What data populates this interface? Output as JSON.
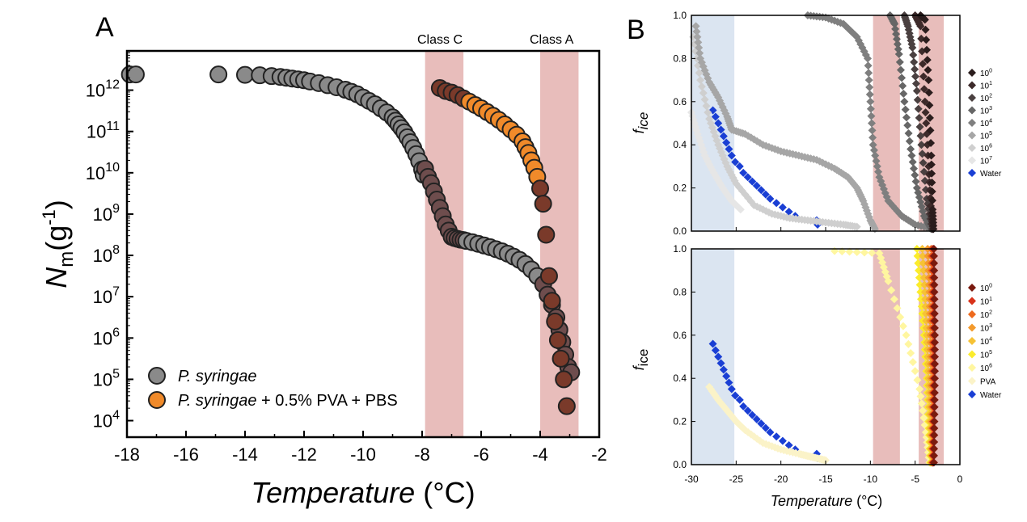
{
  "panel_a": {
    "letter": "A",
    "band_labels": [
      "Class C",
      "Class A"
    ],
    "y_title_main": "N",
    "y_title_sub": "m",
    "y_title_rest": "(g",
    "y_title_sup": "-1",
    "y_title_close": ")",
    "x_title_italic": "Temperature",
    "x_title_unit": " (°C)",
    "legend": [
      {
        "italic": "P. syringae",
        "rest": ""
      },
      {
        "italic": "P. syringae",
        "rest": " + 0.5% PVA + PBS"
      }
    ]
  },
  "panel_b": {
    "letter": "B",
    "y_title_f": "f",
    "y_title_sub_top": "ice",
    "y_title_sub_bottom": "ice",
    "x_title_italic": "Temperature",
    "x_title_unit": " (°C)",
    "legend_top": [
      {
        "base": "10",
        "exp": "0"
      },
      {
        "base": "10",
        "exp": "1"
      },
      {
        "base": "10",
        "exp": "2"
      },
      {
        "base": "10",
        "exp": "3"
      },
      {
        "base": "10",
        "exp": "4"
      },
      {
        "base": "10",
        "exp": "5"
      },
      {
        "base": "10",
        "exp": "6"
      },
      {
        "base": "10",
        "exp": "7"
      },
      {
        "base": "Water",
        "exp": ""
      }
    ],
    "legend_bottom": [
      {
        "base": "10",
        "exp": "0"
      },
      {
        "base": "10",
        "exp": "1"
      },
      {
        "base": "10",
        "exp": "2"
      },
      {
        "base": "10",
        "exp": "3"
      },
      {
        "base": "10",
        "exp": "4"
      },
      {
        "base": "10",
        "exp": "5"
      },
      {
        "base": "10",
        "exp": "6"
      },
      {
        "base": "PVA",
        "exp": ""
      },
      {
        "base": "Water",
        "exp": ""
      }
    ]
  },
  "chart_data": [
    {
      "type": "scatter",
      "panel": "A",
      "title": "",
      "xlabel": "Temperature (°C)",
      "ylabel": "Nm(g-1)",
      "xlim": [
        -18,
        -2
      ],
      "ylim_log10": [
        3.6,
        12.95
      ],
      "x_ticks": [
        "-18",
        "-16",
        "-14",
        "-12",
        "-10",
        "-8",
        "-6",
        "-4",
        "-2"
      ],
      "y_ticks": [
        {
          "base": "10",
          "exp": "4"
        },
        {
          "base": "10",
          "exp": "5"
        },
        {
          "base": "10",
          "exp": "6"
        },
        {
          "base": "10",
          "exp": "7"
        },
        {
          "base": "10",
          "exp": "8"
        },
        {
          "base": "10",
          "exp": "9"
        },
        {
          "base": "10",
          "exp": "10"
        },
        {
          "base": "10",
          "exp": "11"
        },
        {
          "base": "10",
          "exp": "12"
        }
      ],
      "bands": [
        {
          "label": "Class C",
          "x": [
            -7.9,
            -6.6
          ],
          "color": "#e8bdbb"
        },
        {
          "label": "Class A",
          "x": [
            -4.0,
            -2.7
          ],
          "color": "#e8bdbb"
        }
      ],
      "series": [
        {
          "name": "P. syringae",
          "color": "#8a8a8a",
          "x": [
            -17.9,
            -17.7,
            -14.9,
            -14.0,
            -13.5,
            -13.1,
            -12.8,
            -12.6,
            -12.4,
            -12.2,
            -12.0,
            -11.8,
            -11.5,
            -11.2,
            -10.9,
            -10.6,
            -10.4,
            -10.2,
            -10.0,
            -9.8,
            -9.6,
            -9.4,
            -9.2,
            -9.0,
            -8.9,
            -8.8,
            -8.7,
            -8.6,
            -8.5,
            -8.4,
            -8.3,
            -8.2,
            -8.1,
            -8.0,
            -7.95,
            -7.9,
            -7.8,
            -7.7,
            -7.6,
            -7.5,
            -7.4,
            -7.3,
            -7.2,
            -7.1,
            -7.0,
            -6.9,
            -6.8,
            -6.7,
            -6.6,
            -6.5,
            -6.3,
            -6.1,
            -5.9,
            -5.7,
            -5.5,
            -5.3,
            -5.1,
            -4.9,
            -4.7,
            -4.5,
            -4.3,
            -4.1,
            -3.9,
            -3.75,
            -3.6,
            -3.45,
            -3.35,
            -3.25,
            -3.15,
            -3.05,
            -2.95
          ],
          "log10y": [
            12.38,
            12.38,
            12.38,
            12.37,
            12.36,
            12.34,
            12.32,
            12.3,
            12.28,
            12.26,
            12.24,
            12.21,
            12.17,
            12.12,
            12.07,
            12.01,
            11.96,
            11.9,
            11.82,
            11.74,
            11.66,
            11.56,
            11.46,
            11.34,
            11.26,
            11.17,
            11.08,
            10.98,
            10.86,
            10.74,
            10.6,
            10.45,
            10.28,
            10.08,
            9.95,
            10.1,
            9.9,
            9.75,
            9.55,
            9.35,
            9.15,
            8.95,
            8.75,
            8.6,
            8.45,
            8.42,
            8.4,
            8.38,
            8.37,
            8.35,
            8.32,
            8.28,
            8.24,
            8.2,
            8.15,
            8.1,
            8.04,
            7.97,
            7.89,
            7.79,
            7.66,
            7.5,
            7.3,
            7.05,
            6.8,
            6.5,
            6.2,
            5.9,
            5.6,
            5.3,
            5.17
          ]
        },
        {
          "name": "P. syringae + 0.5% PVA + PBS",
          "color": "#f08a2a",
          "x": [
            -7.4,
            -7.2,
            -7.0,
            -6.8,
            -6.6,
            -6.4,
            -6.2,
            -6.0,
            -5.8,
            -5.6,
            -5.4,
            -5.2,
            -5.0,
            -4.8,
            -4.6,
            -4.5,
            -4.4,
            -4.3,
            -4.2,
            -4.1,
            -4.0,
            -3.9,
            -3.8,
            -3.7,
            -3.6,
            -3.5,
            -3.4,
            -3.3,
            -3.2,
            -3.1
          ],
          "log10y": [
            12.05,
            11.98,
            11.94,
            11.88,
            11.8,
            11.72,
            11.64,
            11.56,
            11.47,
            11.38,
            11.28,
            11.17,
            11.05,
            10.92,
            10.76,
            10.62,
            10.48,
            10.3,
            10.12,
            9.9,
            9.62,
            9.25,
            8.5,
            7.5,
            6.9,
            6.4,
            5.95,
            5.5,
            5.0,
            4.35
          ]
        }
      ]
    },
    {
      "type": "scatter",
      "panel": "B-top",
      "title": "",
      "xlabel": "",
      "ylabel": "fice",
      "xlim": [
        -30,
        0
      ],
      "ylim": [
        0,
        1.0
      ],
      "y_ticks": [
        "0.0",
        "0.2",
        "0.4",
        "0.6",
        "0.8",
        "1.0"
      ],
      "bands": [
        {
          "x": [
            -30,
            -25.2
          ],
          "color": "#dbe5f1"
        },
        {
          "x": [
            -9.7,
            -6.7
          ],
          "color": "#e8bdbb"
        },
        {
          "x": [
            -4.6,
            -1.8
          ],
          "color": "#e8bdbb"
        }
      ],
      "series": [
        {
          "name": "10^0",
          "color": "#2b1d1d",
          "x": [
            -4.4,
            -3.9,
            -3.5,
            -3.2,
            -3.05,
            -2.95
          ],
          "y": [
            1.0,
            0.98,
            0.7,
            0.35,
            0.1,
            0.01
          ]
        },
        {
          "name": "10^1",
          "color": "#3d2a2a",
          "x": [
            -5.0,
            -4.4,
            -3.9,
            -3.5,
            -3.2,
            -3.0
          ],
          "y": [
            1.0,
            0.95,
            0.6,
            0.3,
            0.08,
            0.01
          ]
        },
        {
          "name": "10^2",
          "color": "#4a4040",
          "x": [
            -6.2,
            -5.8,
            -5.3,
            -4.8,
            -4.3,
            -3.7,
            -3.1
          ],
          "y": [
            1.0,
            0.95,
            0.85,
            0.65,
            0.4,
            0.15,
            0.01
          ]
        },
        {
          "name": "10^3",
          "color": "#666666",
          "x": [
            -7.8,
            -7.3,
            -6.8,
            -6.2,
            -5.5,
            -4.8,
            -4.0,
            -3.2
          ],
          "y": [
            1.0,
            0.96,
            0.82,
            0.6,
            0.38,
            0.2,
            0.07,
            0.01
          ]
        },
        {
          "name": "10^4",
          "color": "#7f7f7f",
          "x": [
            -17.0,
            -15.0,
            -13.0,
            -11.5,
            -10.3,
            -10.0,
            -9.7,
            -9.0,
            -8.0,
            -6.5,
            -5.0,
            -3.0
          ],
          "y": [
            1.0,
            0.99,
            0.96,
            0.9,
            0.8,
            0.6,
            0.4,
            0.25,
            0.14,
            0.07,
            0.03,
            0.01
          ]
        },
        {
          "name": "10^5",
          "color": "#a6a6a6",
          "x": [
            -29.5,
            -29.0,
            -28.0,
            -27.0,
            -26.0,
            -25.5,
            -24.0,
            -22.0,
            -20.0,
            -18.0,
            -16.0,
            -14.0,
            -12.5,
            -11.5,
            -10.8,
            -10.0,
            -9.5
          ],
          "y": [
            0.95,
            0.8,
            0.69,
            0.62,
            0.53,
            0.47,
            0.45,
            0.4,
            0.37,
            0.35,
            0.33,
            0.29,
            0.25,
            0.2,
            0.14,
            0.05,
            0.01
          ]
        },
        {
          "name": "10^6",
          "color": "#cfcfcf",
          "x": [
            -29.8,
            -29.0,
            -28.0,
            -27.0,
            -26.0,
            -25.0,
            -23.0,
            -21.0,
            -19.0,
            -17.0,
            -15.0,
            -13.0,
            -11.5
          ],
          "y": [
            0.9,
            0.7,
            0.52,
            0.4,
            0.3,
            0.22,
            0.12,
            0.08,
            0.06,
            0.05,
            0.04,
            0.03,
            0.02
          ]
        },
        {
          "name": "10^7",
          "color": "#e6e6e6",
          "x": [
            -30.0,
            -29.3,
            -28.5,
            -27.5,
            -26.5,
            -25.5,
            -24.5
          ],
          "y": [
            0.55,
            0.45,
            0.35,
            0.27,
            0.2,
            0.14,
            0.1
          ]
        },
        {
          "name": "Water",
          "color": "#1a3fd4",
          "x": [
            -27.6,
            -27.3,
            -27.0,
            -26.7,
            -26.4,
            -26.1,
            -25.8,
            -25.5,
            -25.1,
            -24.6,
            -24.2,
            -23.7,
            -23.2,
            -22.7,
            -22.2,
            -21.7,
            -21.2,
            -20.5,
            -19.8,
            -19.1,
            -18.4,
            -16.0,
            -15.9,
            -3.0
          ],
          "y": [
            0.56,
            0.53,
            0.5,
            0.47,
            0.44,
            0.41,
            0.38,
            0.35,
            0.32,
            0.3,
            0.27,
            0.25,
            0.23,
            0.21,
            0.19,
            0.17,
            0.15,
            0.13,
            0.11,
            0.09,
            0.07,
            0.05,
            0.03,
            0.01
          ]
        }
      ]
    },
    {
      "type": "scatter",
      "panel": "B-bottom",
      "title": "",
      "xlabel": "Temperature (°C)",
      "ylabel": "fice",
      "xlim": [
        -30,
        0
      ],
      "ylim": [
        0,
        1.0
      ],
      "x_ticks": [
        "-30",
        "-25",
        "-20",
        "-15",
        "-10",
        "-5",
        "0"
      ],
      "y_ticks": [
        "0.0",
        "0.2",
        "0.4",
        "0.6",
        "0.8",
        "1.0"
      ],
      "bands": [
        {
          "x": [
            -30,
            -25.2
          ],
          "color": "#dbe5f1"
        },
        {
          "x": [
            -9.7,
            -6.7
          ],
          "color": "#e8bdbb"
        },
        {
          "x": [
            -4.6,
            -1.8
          ],
          "color": "#e8bdbb"
        }
      ],
      "series": [
        {
          "name": "10^0",
          "color": "#7a1a0e",
          "x": [
            -2.9,
            -2.85,
            -2.8,
            -2.8,
            -2.85,
            -2.9
          ],
          "y": [
            1.0,
            0.8,
            0.6,
            0.4,
            0.2,
            0.01
          ]
        },
        {
          "name": "10^1",
          "color": "#d8321a",
          "x": [
            -3.0,
            -2.95,
            -2.9,
            -2.9,
            -2.95,
            -3.0
          ],
          "y": [
            1.0,
            0.8,
            0.6,
            0.4,
            0.2,
            0.01
          ]
        },
        {
          "name": "10^2",
          "color": "#ee6a1e",
          "x": [
            -3.2,
            -3.1,
            -3.05,
            -3.0,
            -3.0,
            -3.05
          ],
          "y": [
            1.0,
            0.8,
            0.6,
            0.4,
            0.2,
            0.01
          ]
        },
        {
          "name": "10^3",
          "color": "#f39a2c",
          "x": [
            -3.6,
            -3.4,
            -3.3,
            -3.2,
            -3.15,
            -3.1
          ],
          "y": [
            1.0,
            0.8,
            0.6,
            0.4,
            0.2,
            0.01
          ]
        },
        {
          "name": "10^4",
          "color": "#f6c235",
          "x": [
            -4.2,
            -3.9,
            -3.7,
            -3.5,
            -3.35,
            -3.2
          ],
          "y": [
            1.0,
            0.8,
            0.6,
            0.4,
            0.2,
            0.01
          ]
        },
        {
          "name": "10^5",
          "color": "#fbec2c",
          "x": [
            -4.8,
            -4.4,
            -4.0,
            -3.7,
            -3.5,
            -3.3
          ],
          "y": [
            1.0,
            0.8,
            0.6,
            0.4,
            0.2,
            0.01
          ]
        },
        {
          "name": "10^6",
          "color": "#fff6a0",
          "x": [
            -14.0,
            -9.0,
            -8.0,
            -6.0,
            -4.5,
            -3.8,
            -3.4
          ],
          "y": [
            0.99,
            0.98,
            0.85,
            0.6,
            0.35,
            0.15,
            0.01
          ]
        },
        {
          "name": "PVA",
          "color": "#fbf3c8",
          "x": [
            -28.0,
            -27.0,
            -26.0,
            -25.0,
            -24.0,
            -22.0,
            -20.0,
            -18.0,
            -17.0,
            -16.0,
            -15.0
          ],
          "y": [
            0.36,
            0.3,
            0.25,
            0.2,
            0.16,
            0.1,
            0.07,
            0.05,
            0.04,
            0.03,
            0.02
          ]
        },
        {
          "name": "Water",
          "color": "#1a3fd4",
          "x": [
            -27.6,
            -27.3,
            -27.0,
            -26.7,
            -26.4,
            -26.1,
            -25.8,
            -25.5,
            -25.1,
            -24.6,
            -24.2,
            -23.7,
            -23.2,
            -22.7,
            -22.2,
            -21.7,
            -21.2,
            -20.5,
            -19.8,
            -19.1,
            -18.4,
            -16.0,
            -15.9,
            -3.0
          ],
          "y": [
            0.56,
            0.53,
            0.5,
            0.47,
            0.44,
            0.41,
            0.38,
            0.35,
            0.32,
            0.3,
            0.27,
            0.25,
            0.23,
            0.21,
            0.19,
            0.17,
            0.15,
            0.13,
            0.11,
            0.09,
            0.07,
            0.05,
            0.03,
            0.01
          ]
        }
      ]
    }
  ]
}
